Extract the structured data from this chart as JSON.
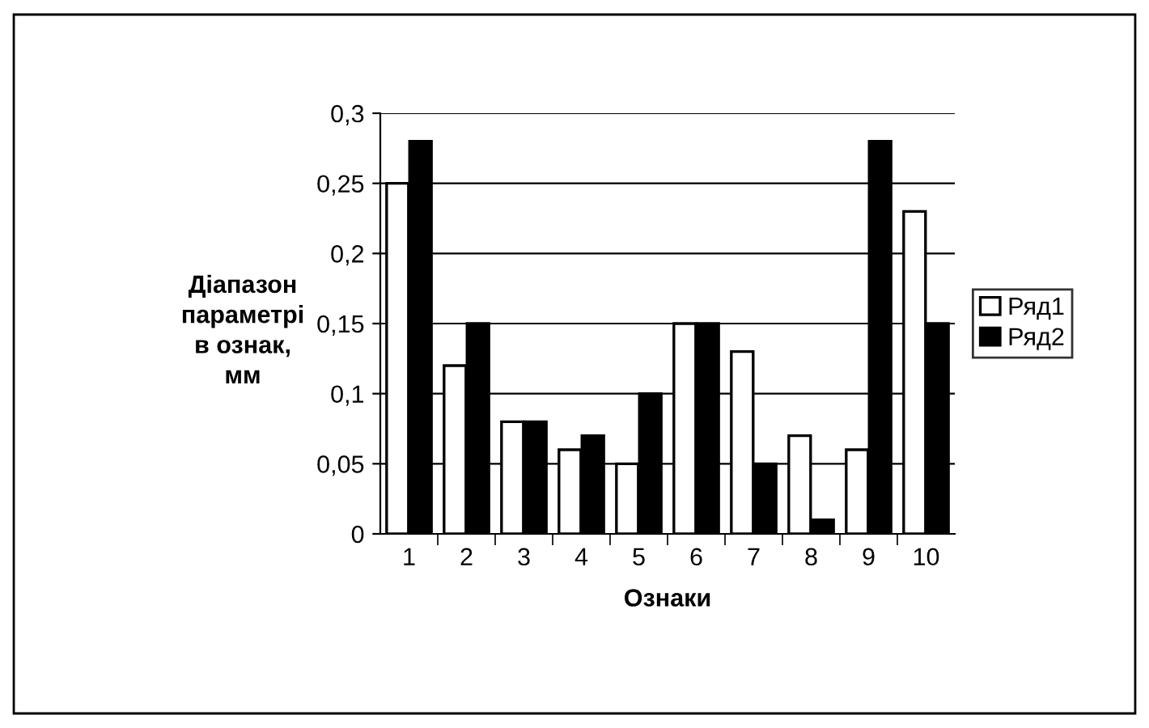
{
  "chart_data": {
    "type": "bar",
    "xlabel": "Ознаки",
    "ylabel": "Діапазон\nпараметрі\nв ознак,\nмм",
    "categories": [
      "1",
      "2",
      "3",
      "4",
      "5",
      "6",
      "7",
      "8",
      "9",
      "10"
    ],
    "series": [
      {
        "name": "Ряд1",
        "color": "#ffffff",
        "values": [
          0.25,
          0.12,
          0.08,
          0.06,
          0.05,
          0.15,
          0.13,
          0.07,
          0.06,
          0.23
        ]
      },
      {
        "name": "Ряд2",
        "color": "#000000",
        "values": [
          0.28,
          0.15,
          0.08,
          0.07,
          0.1,
          0.15,
          0.05,
          0.01,
          0.28,
          0.15
        ]
      }
    ],
    "ylim": [
      0,
      0.3
    ],
    "yticks": [
      {
        "value": 0,
        "label": "0"
      },
      {
        "value": 0.05,
        "label": "0,05"
      },
      {
        "value": 0.1,
        "label": "0,1"
      },
      {
        "value": 0.15,
        "label": "0,15"
      },
      {
        "value": 0.2,
        "label": "0,2"
      },
      {
        "value": 0.25,
        "label": "0,25"
      },
      {
        "value": 0.3,
        "label": "0,3"
      }
    ],
    "grid": "y",
    "legend": "right"
  }
}
